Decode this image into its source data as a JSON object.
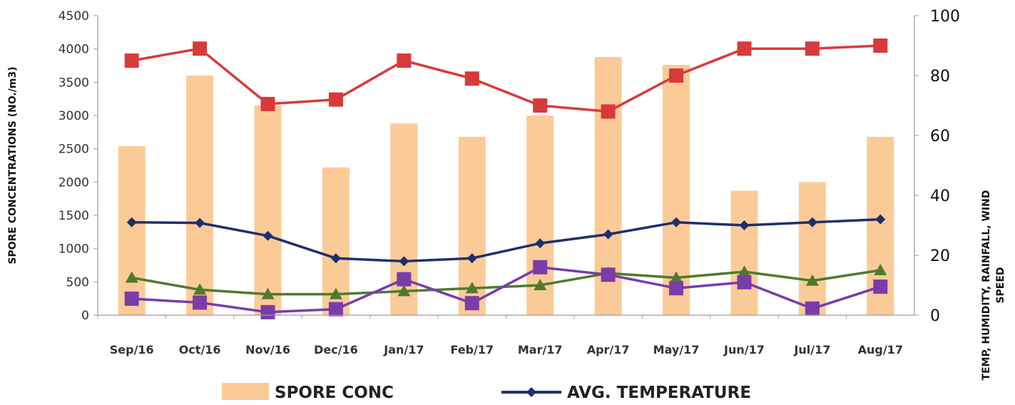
{
  "chart_data": {
    "type": "bar+line",
    "categories": [
      "Sep/16",
      "Oct/16",
      "Nov/16",
      "Dec/16",
      "Jan/17",
      "Feb/17",
      "Mar/17",
      "Apr/17",
      "May/17",
      "Jun/17",
      "Jul/17",
      "Aug/17"
    ],
    "left_axis": {
      "label": "SPORE CONCENTRATIONS (NO./m3)",
      "ylim": [
        0,
        4500
      ],
      "ticks": [
        "0",
        "500",
        "1000",
        "1500",
        "2000",
        "2500",
        "3000",
        "3500",
        "4000",
        "4500"
      ]
    },
    "right_axis": {
      "label_line1": "TEMP, HUMIDITY, RAINFALL, WIND",
      "label_line2": "SPEED",
      "ylim": [
        0,
        100
      ],
      "ticks": [
        "0",
        "20",
        "40",
        "60",
        "80",
        "100"
      ]
    },
    "bars": {
      "name": "SPORE CONC",
      "axis": "left",
      "color": "#fbcb97",
      "values": [
        2540,
        3600,
        3150,
        2220,
        2880,
        2680,
        3000,
        3880,
        3760,
        1870,
        2000,
        2680
      ]
    },
    "series": [
      {
        "name": "AVG. TEMPERATURE",
        "axis": "right",
        "color": "#1f2f6e",
        "marker": "diamond",
        "values": [
          31,
          30.8,
          26.5,
          19,
          18,
          19,
          24,
          27,
          31,
          30,
          31,
          32
        ]
      },
      {
        "axis": "right",
        "color": "#d83a3a",
        "marker": "square",
        "values": [
          85,
          89,
          70.5,
          72,
          85,
          79,
          70,
          68,
          80,
          89,
          89,
          90
        ]
      },
      {
        "axis": "right",
        "color": "#4f7a2e",
        "marker": "triangle",
        "values": [
          12.5,
          8.5,
          7,
          7,
          8,
          9,
          10,
          14,
          12.5,
          14.5,
          11.5,
          15
        ]
      },
      {
        "axis": "right",
        "color": "#7a3ca8",
        "marker": "square",
        "values": [
          5.5,
          4.2,
          1,
          2,
          12,
          4,
          16,
          13.5,
          9,
          11,
          2.2,
          9.5
        ]
      }
    ],
    "legend": {
      "placement": "bottom",
      "items": [
        {
          "label": "SPORE CONC",
          "kind": "bar",
          "color": "#fbcb97"
        },
        {
          "label": "AVG. TEMPERATURE",
          "kind": "line",
          "color": "#1f2f6e"
        }
      ]
    }
  }
}
